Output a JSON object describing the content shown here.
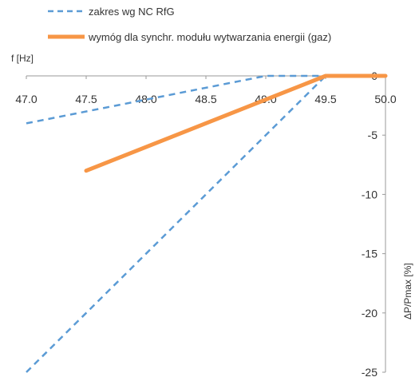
{
  "chart_data": {
    "type": "line",
    "title": "",
    "xlabel": "f [Hz]",
    "ylabel": "ΔP/Pmax [%]",
    "xlim": [
      47.0,
      50.0
    ],
    "ylim": [
      -25,
      0
    ],
    "x_ticks": [
      "47.0",
      "47.5",
      "48.0",
      "48.5",
      "49.0",
      "49.5",
      "50.0"
    ],
    "y_ticks": [
      "0",
      "-5",
      "-10",
      "-15",
      "-20",
      "-25"
    ],
    "grid": false,
    "legend_position": "top",
    "series": [
      {
        "name": "zakres wg NC RfG",
        "style": "dashed",
        "color": "#5b9bd5",
        "segments": [
          [
            [
              47.0,
              -4.0
            ],
            [
              49.0,
              0.0
            ],
            [
              49.5,
              0.0
            ]
          ],
          [
            [
              47.0,
              -25.0
            ],
            [
              49.5,
              0.0
            ]
          ]
        ]
      },
      {
        "name": "wymóg dla synchr. modułu wytwarzania energii (gaz)",
        "style": "solid",
        "color": "#f79646",
        "segments": [
          [
            [
              47.5,
              -8.0
            ],
            [
              49.5,
              0.0
            ],
            [
              50.0,
              0.0
            ]
          ]
        ]
      }
    ]
  }
}
